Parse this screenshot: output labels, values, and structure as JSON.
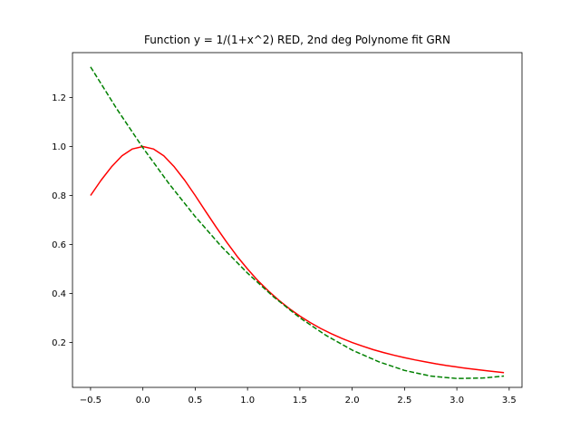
{
  "chart_data": {
    "type": "line",
    "title": "Function y = 1/(1+x^2) RED, 2nd deg Polynome fit GRN",
    "xlabel": "",
    "ylabel": "",
    "xlim": [
      -0.6725,
      3.6225
    ],
    "ylim": [
      0.0168,
      1.3832
    ],
    "x_ticks": [
      -0.5,
      0.0,
      0.5,
      1.0,
      1.5,
      2.0,
      2.5,
      3.0,
      3.5
    ],
    "x_tick_labels": [
      "−0.5",
      "0.0",
      "0.5",
      "1.0",
      "1.5",
      "2.0",
      "2.5",
      "3.0",
      "3.5"
    ],
    "y_ticks": [
      0.2,
      0.4,
      0.6,
      0.8,
      1.0,
      1.2
    ],
    "y_tick_labels": [
      "0.2",
      "0.4",
      "0.6",
      "0.8",
      "1.0",
      "1.2"
    ],
    "grid": false,
    "legend": "none",
    "series": [
      {
        "color": "#ff0000",
        "line_style": "solid",
        "x": [
          -0.5,
          -0.4,
          -0.3,
          -0.2,
          -0.1,
          0.0,
          0.1,
          0.2,
          0.3,
          0.4,
          0.5,
          0.6,
          0.7,
          0.8,
          0.9,
          1.0,
          1.1,
          1.2,
          1.3,
          1.4,
          1.5,
          1.6,
          1.7,
          1.8,
          1.9,
          2.0,
          2.1,
          2.2,
          2.3,
          2.4,
          2.5,
          2.6,
          2.7,
          2.8,
          2.9,
          3.0,
          3.1,
          3.2,
          3.3,
          3.45
        ],
        "y": [
          0.8,
          0.862,
          0.917,
          0.962,
          0.99,
          1.0,
          0.99,
          0.962,
          0.917,
          0.862,
          0.8,
          0.735,
          0.671,
          0.61,
          0.552,
          0.5,
          0.452,
          0.41,
          0.372,
          0.338,
          0.308,
          0.281,
          0.257,
          0.236,
          0.217,
          0.2,
          0.185,
          0.171,
          0.159,
          0.148,
          0.138,
          0.129,
          0.121,
          0.113,
          0.106,
          0.1,
          0.094,
          0.089,
          0.084,
          0.077
        ]
      },
      {
        "color": "#008000",
        "line_style": "dashed",
        "x": [
          -0.5,
          -0.25,
          0.0,
          0.25,
          0.5,
          0.75,
          1.0,
          1.25,
          1.5,
          1.75,
          2.0,
          2.25,
          2.5,
          2.75,
          3.0,
          3.25,
          3.45
        ],
        "y": [
          1.325,
          1.154,
          0.995,
          0.848,
          0.714,
          0.592,
          0.483,
          0.386,
          0.301,
          0.229,
          0.169,
          0.122,
          0.086,
          0.063,
          0.053,
          0.055,
          0.063
        ]
      }
    ]
  }
}
